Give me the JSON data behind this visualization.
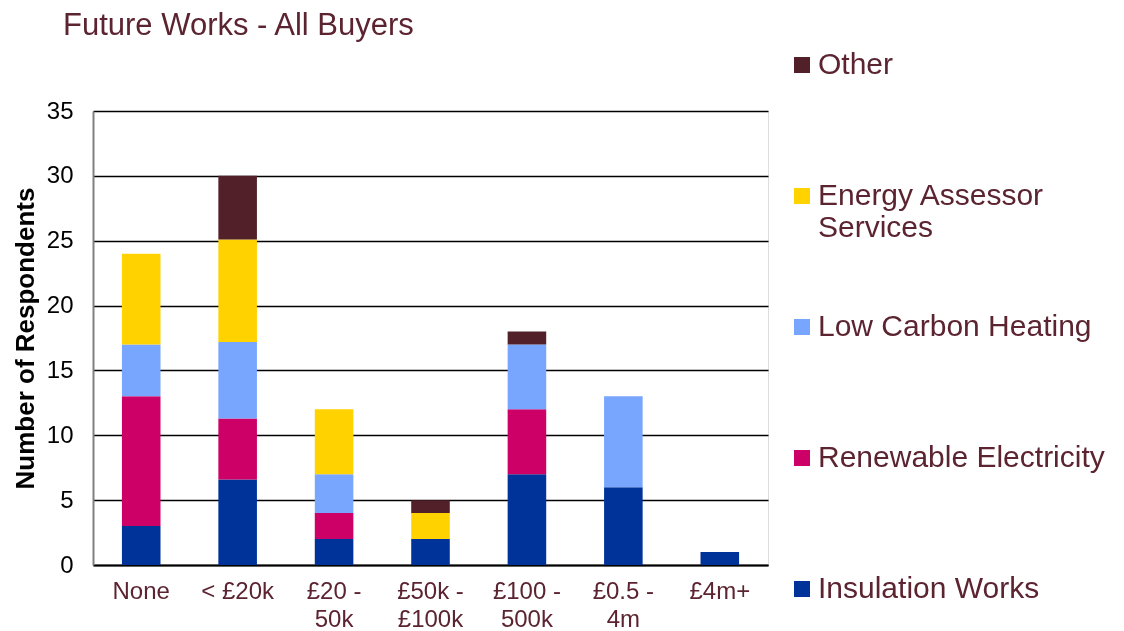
{
  "chart_data": {
    "type": "bar",
    "title": "Future Works - All Buyers",
    "ylabel": "Number of Respondents",
    "categories": [
      "None",
      "< £20k",
      "£20 - 50k",
      "£50k - £100k",
      "£100 - 500k",
      "£0.5 - 4m",
      "£4m+"
    ],
    "series": [
      {
        "name": "Insulation Works",
        "color": "#003399",
        "values": [
          3,
          6.6,
          2,
          2,
          7,
          6,
          1
        ]
      },
      {
        "name": "Renewable Electricity",
        "color": "#cc0066",
        "values": [
          10,
          4.7,
          2,
          0,
          5,
          0,
          0
        ]
      },
      {
        "name": "Low Carbon Heating",
        "color": "#78a6ff",
        "values": [
          4,
          5.9,
          3,
          0,
          5,
          7,
          0
        ]
      },
      {
        "name": "Energy Assessor Services",
        "color": "#ffd200",
        "values": [
          7,
          7.9,
          5,
          2,
          0,
          0,
          0
        ]
      },
      {
        "name": "Other",
        "color": "#522029",
        "values": [
          0,
          4.9,
          0,
          1,
          1,
          0,
          0
        ]
      }
    ],
    "stacked": true,
    "ylim": [
      0,
      35
    ],
    "yticks": [
      0,
      5,
      10,
      15,
      20,
      25,
      30,
      35
    ],
    "grid": "y",
    "legend": "right"
  }
}
